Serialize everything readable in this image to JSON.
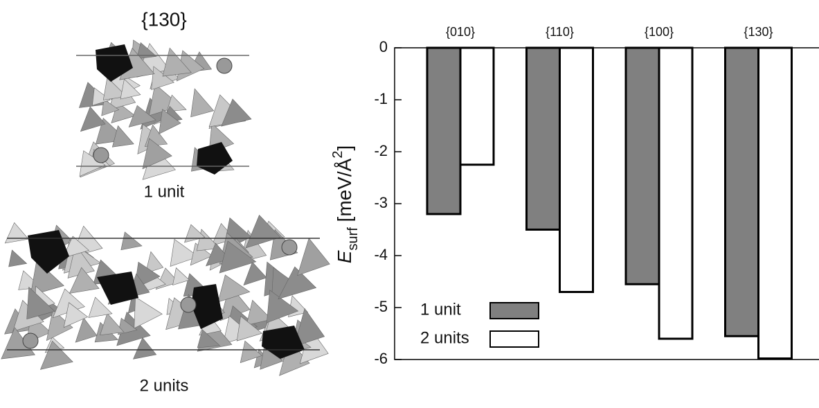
{
  "structure_panel": {
    "title": "{130}",
    "labels": [
      "1 unit",
      "2 units"
    ]
  },
  "chart_data": {
    "type": "bar",
    "y_label": {
      "symbol": "E",
      "subscript": "surf",
      "unit": " [meV/Å",
      "superscript": "2",
      "close": "]"
    },
    "categories": [
      "{010}",
      "{110}",
      "{100}",
      "{130}"
    ],
    "series": [
      {
        "name": "1 unit",
        "color": "#808080",
        "values": [
          -3.2,
          -3.5,
          -4.55,
          -5.55
        ]
      },
      {
        "name": "2 units",
        "color": "#ffffff",
        "values": [
          -2.25,
          -4.7,
          -5.6,
          -5.98
        ]
      }
    ],
    "ylim": [
      -6,
      0
    ],
    "yticks": [
      0,
      -1,
      -2,
      -3,
      -4,
      -5,
      -6
    ],
    "legend": "lower-left"
  }
}
